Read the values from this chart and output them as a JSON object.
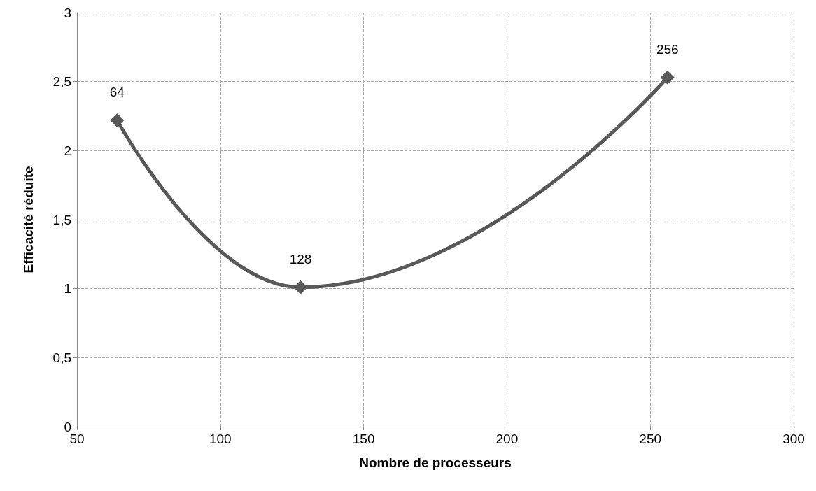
{
  "chart_data": {
    "type": "line",
    "xlabel": "Nombre de processeurs",
    "ylabel": "Efficacité réduite",
    "x": [
      64,
      128,
      256
    ],
    "series": [
      {
        "color": "#595959",
        "values": [
          2.22,
          1.01,
          2.53
        ]
      }
    ],
    "annotations": [
      {
        "text": "64",
        "x": 64,
        "y": 2.22
      },
      {
        "text": "128",
        "x": 128,
        "y": 1.01
      },
      {
        "text": "256",
        "x": 256,
        "y": 2.53
      }
    ],
    "xlim": [
      50,
      300
    ],
    "xticks": [
      50,
      100,
      150,
      200,
      250,
      300
    ],
    "ylim": [
      0,
      3
    ],
    "yticks": [
      0,
      {
        "value": 0.5,
        "label": "0,5"
      },
      1,
      {
        "value": 1.5,
        "label": "1,5"
      },
      2,
      {
        "value": 2.5,
        "label": "2,5"
      },
      3
    ],
    "grid": true,
    "marker": "diamond",
    "line_style": "solid"
  }
}
